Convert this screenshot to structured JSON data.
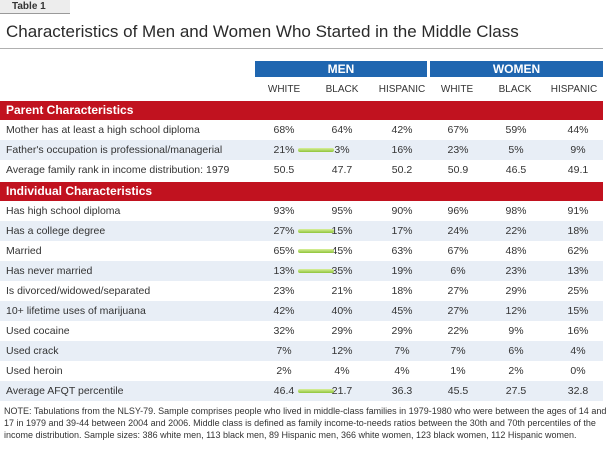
{
  "table_tag": "Table 1",
  "title": "Characteristics of Men and Women Who Started in the Middle Class",
  "groups": {
    "men": "MEN",
    "women": "WOMEN"
  },
  "columns": [
    "WHITE",
    "BLACK",
    "HISPANIC",
    "WHITE",
    "BLACK",
    "HISPANIC"
  ],
  "sections": [
    {
      "title": "Parent Characteristics",
      "rows": [
        {
          "label": "Mother has at least a high school diploma",
          "values": [
            "68%",
            "64%",
            "42%",
            "67%",
            "59%",
            "44%"
          ],
          "highlight": false
        },
        {
          "label": "Father's occupation is professional/managerial",
          "values": [
            "21%",
            "3%",
            "16%",
            "23%",
            "5%",
            "9%"
          ],
          "highlight": true
        },
        {
          "label": "Average family rank in income distribution: 1979",
          "values": [
            "50.5",
            "47.7",
            "50.2",
            "50.9",
            "46.5",
            "49.1"
          ],
          "highlight": false
        }
      ]
    },
    {
      "title": "Individual Characteristics",
      "rows": [
        {
          "label": "Has high school diploma",
          "values": [
            "93%",
            "95%",
            "90%",
            "96%",
            "98%",
            "91%"
          ],
          "highlight": false
        },
        {
          "label": "Has a college degree",
          "values": [
            "27%",
            "15%",
            "17%",
            "24%",
            "22%",
            "18%"
          ],
          "highlight": true
        },
        {
          "label": "Married",
          "values": [
            "65%",
            "45%",
            "63%",
            "67%",
            "48%",
            "62%"
          ],
          "highlight": true
        },
        {
          "label": "Has never married",
          "values": [
            "13%",
            "35%",
            "19%",
            "6%",
            "23%",
            "13%"
          ],
          "highlight": true
        },
        {
          "label": "Is divorced/widowed/separated",
          "values": [
            "23%",
            "21%",
            "18%",
            "27%",
            "29%",
            "25%"
          ],
          "highlight": false
        },
        {
          "label": "10+ lifetime uses of marijuana",
          "values": [
            "42%",
            "40%",
            "45%",
            "27%",
            "12%",
            "15%"
          ],
          "highlight": false
        },
        {
          "label": "Used cocaine",
          "values": [
            "32%",
            "29%",
            "29%",
            "22%",
            "9%",
            "16%"
          ],
          "highlight": false
        },
        {
          "label": "Used crack",
          "values": [
            "7%",
            "12%",
            "7%",
            "7%",
            "6%",
            "4%"
          ],
          "highlight": false
        },
        {
          "label": "Used heroin",
          "values": [
            "2%",
            "4%",
            "4%",
            "1%",
            "2%",
            "0%"
          ],
          "highlight": false
        },
        {
          "label": "Average AFQT percentile",
          "values": [
            "46.4",
            "21.7",
            "36.3",
            "45.5",
            "27.5",
            "32.8"
          ],
          "highlight": true
        }
      ]
    }
  ],
  "note": "NOTE: Tabulations from the NLSY-79. Sample comprises people who lived in middle-class families in 1979-1980 who were between the ages of 14 and 17 in 1979 and 39-44 between 2004 and 2006. Middle class is defined as family income-to-needs ratios between the 30th and 70th percentiles of the income distribution. Sample sizes: 386 white men, 113 black men, 89 Hispanic men, 366 white women, 123 black women, 112 Hispanic women.",
  "colors": {
    "group_header": "#1f66b0",
    "section_header": "#c1121f",
    "row_shade": "#e8eef6",
    "highlight": "#a6d04a"
  }
}
